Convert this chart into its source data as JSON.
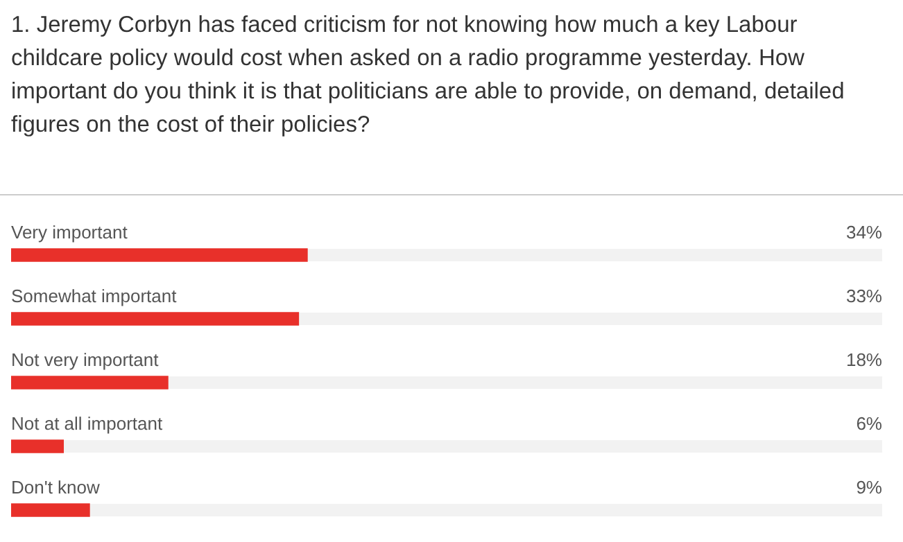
{
  "chart_data": {
    "type": "bar",
    "orientation": "horizontal",
    "title": "1.  Jeremy Corbyn has faced criticism for not knowing how much a key Labour childcare policy would cost when asked on a radio programme yesterday. How important do you think it is that politicians are able to provide, on demand, detailed figures on the cost of their policies?",
    "categories": [
      "Very important",
      "Somewhat important",
      "Not very important",
      "Not at all important",
      "Don't know"
    ],
    "values": [
      34,
      33,
      18,
      6,
      9
    ],
    "value_labels": [
      "34%",
      "33%",
      "18%",
      "6%",
      "9%"
    ],
    "color": "#e8302a",
    "xlim": [
      0,
      100
    ],
    "legend": false
  }
}
